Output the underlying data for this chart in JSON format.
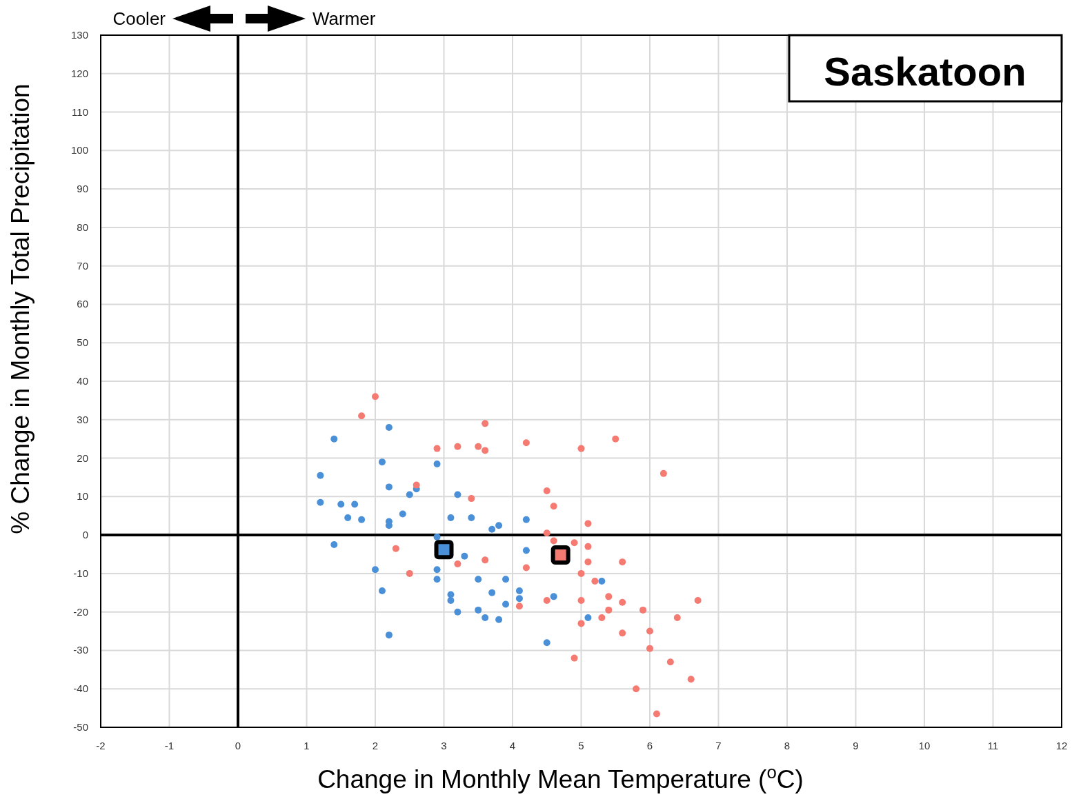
{
  "chart_data": {
    "type": "scatter",
    "title": "Saskatoon",
    "xlabel": "Change in Monthly Mean Temperature ($^{o}$C)",
    "ylabel": "% Change in Monthly Total Precipitation",
    "annotations": [
      "Cooler",
      "Warmer"
    ],
    "xlim": [
      -2,
      12
    ],
    "xticks": [
      -2,
      -1,
      0,
      1,
      2,
      3,
      4,
      5,
      6,
      7,
      8,
      9,
      10,
      11,
      12
    ],
    "ylim": [
      -50,
      130
    ],
    "yticks": [
      -50,
      -40,
      -30,
      -20,
      -10,
      0,
      10,
      20,
      30,
      40,
      50,
      60,
      70,
      80,
      90,
      100,
      110,
      120,
      130
    ],
    "grid": true,
    "series": [
      {
        "color": "#4a90d9",
        "marker": "circle",
        "x": [
          1.4,
          2.2,
          2.1,
          1.2,
          2.9,
          2.2,
          2.6,
          2.5,
          3.2,
          1.2,
          1.5,
          1.7,
          1.6,
          1.8,
          2.4,
          2.2,
          2.2,
          3.1,
          3.4,
          3.7,
          3.8,
          4.2,
          2.9,
          1.4,
          3.3,
          4.2,
          2.0,
          2.9,
          2.9,
          3.5,
          3.9,
          5.3,
          2.1,
          3.1,
          3.1,
          3.7,
          4.1,
          4.1,
          4.6,
          3.9,
          3.2,
          3.5,
          3.6,
          3.8,
          5.1,
          2.2,
          4.5
        ],
        "values": [
          25,
          28,
          19,
          15.5,
          18.5,
          12.5,
          12,
          10.5,
          10.5,
          8.5,
          8,
          8,
          4.5,
          4,
          5.5,
          3.5,
          2.5,
          4.5,
          4.5,
          1.5,
          2.5,
          4,
          -0.5,
          -2.5,
          -5.5,
          -4,
          -9,
          -9,
          -11.5,
          -11.5,
          -11.5,
          -12,
          -14.5,
          -15.5,
          -17,
          -15,
          -14.5,
          -16.5,
          -16,
          -18,
          -20,
          -19.5,
          -21.5,
          -22,
          -21.5,
          -26,
          -28
        ]
      },
      {
        "color": "#f47a72",
        "marker": "circle",
        "x": [
          2.0,
          1.8,
          3.6,
          2.9,
          3.2,
          3.5,
          3.6,
          4.2,
          5.5,
          5.0,
          6.2,
          2.6,
          3.4,
          4.5,
          4.6,
          5.1,
          4.5,
          4.6,
          4.9,
          5.1,
          2.3,
          3.6,
          3.2,
          5.1,
          5.6,
          4.2,
          2.5,
          5.0,
          5.2,
          5.4,
          5.0,
          4.5,
          4.1,
          5.6,
          6.7,
          5.9,
          5.4,
          5.3,
          6.4,
          5.0,
          6.0,
          5.6,
          6.0,
          4.9,
          6.3,
          6.6,
          5.8,
          6.1
        ],
        "values": [
          36,
          31,
          29,
          22.5,
          23,
          23,
          22,
          24,
          25,
          22.5,
          16,
          13,
          9.5,
          11.5,
          7.5,
          3,
          0.5,
          -1.5,
          -2,
          -3,
          -3.5,
          -6.5,
          -7.5,
          -7,
          -7,
          -8.5,
          -10,
          -10,
          -12,
          -16,
          -17,
          -17,
          -18.5,
          -17.5,
          -17,
          -19.5,
          -19.5,
          -21.5,
          -21.5,
          -23,
          -25,
          -25.5,
          -29.5,
          -32,
          -33,
          -37.5,
          -40,
          -46.5
        ]
      },
      {
        "color": "#4a90d9",
        "marker": "square",
        "x": [
          3.0
        ],
        "values": [
          -3.8
        ]
      },
      {
        "color": "#f47a72",
        "marker": "square",
        "x": [
          4.7
        ],
        "values": [
          -5.2
        ]
      }
    ]
  }
}
